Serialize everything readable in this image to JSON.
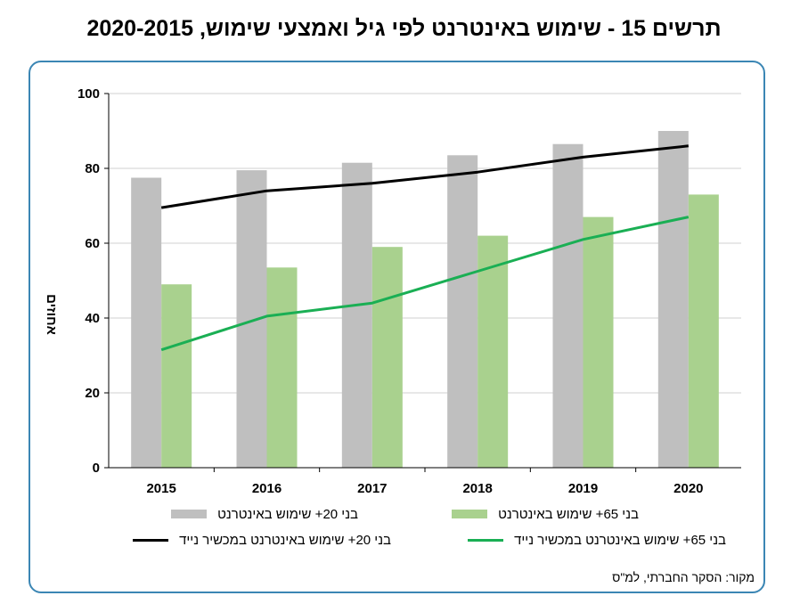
{
  "title": "תרשים 15 - שימוש באינטרנט לפי גיל ואמצעי שימוש, 2020-2015",
  "source": "מקור: הסקר החברתי, למ\"ס",
  "colors": {
    "frame": "#3b86b4",
    "gray_bar": "#bfbfbf",
    "green_bar": "#a9d18e",
    "black_line": "#000000",
    "green_line": "#1aaf54"
  },
  "chart_data": {
    "type": "bar",
    "categories": [
      "2015",
      "2016",
      "2017",
      "2018",
      "2019",
      "2020"
    ],
    "ylabel": "אחוזים",
    "ylim": [
      0,
      100
    ],
    "yticks": [
      "0",
      "20",
      "40",
      "60",
      "80",
      "100"
    ],
    "grid": true,
    "series": [
      {
        "name": "בני 20+ שימוש באינטרנט",
        "kind": "bar",
        "color": "#bfbfbf",
        "values": [
          77.5,
          79.5,
          81.5,
          83.5,
          86.5,
          90
        ]
      },
      {
        "name": "בני 65+ שימוש באינטרנט",
        "kind": "bar",
        "color": "#a9d18e",
        "values": [
          49,
          53.5,
          59,
          62,
          67,
          73
        ]
      },
      {
        "name": "בני 20+ שימוש באינטרנט במכשיר נייד",
        "kind": "line",
        "color": "#000000",
        "values": [
          69.5,
          74,
          76,
          79,
          83,
          86
        ]
      },
      {
        "name": "בני 65+ שימוש באינטרנט במכשיר נייד",
        "kind": "line",
        "color": "#1aaf54",
        "values": [
          31.5,
          40.5,
          44,
          52.5,
          61,
          67
        ]
      }
    ],
    "legend_position": "bottom"
  }
}
